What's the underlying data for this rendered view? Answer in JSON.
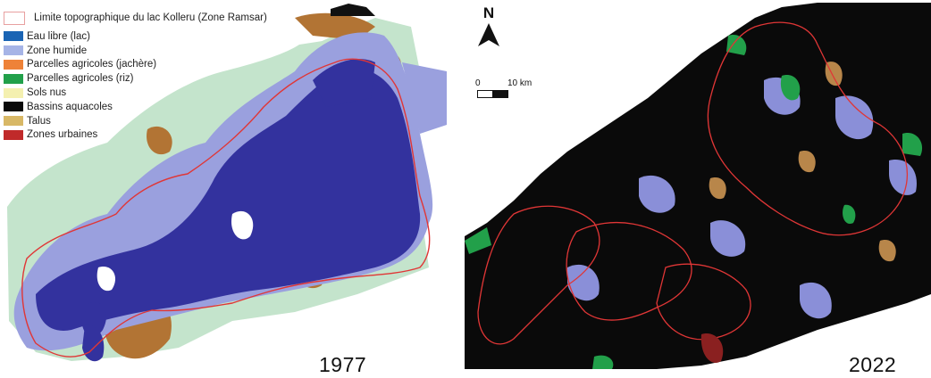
{
  "legend": {
    "boundary_label": "Limite topographique du lac Kolleru (Zone Ramsar)",
    "items": [
      {
        "label": "Eau libre (lac)",
        "color": "#1a64b4"
      },
      {
        "label": "Zone humide",
        "color": "#a6b4e6"
      },
      {
        "label": "Parcelles agricoles (jachère)",
        "color": "#ee8238"
      },
      {
        "label": "Parcelles agricoles (riz)",
        "color": "#22a04a"
      },
      {
        "label": "Sols nus",
        "color": "#f4f0b0"
      },
      {
        "label": "Bassins aquacoles",
        "color": "#0a0a0a"
      },
      {
        "label": "Talus",
        "color": "#d8b866"
      },
      {
        "label": "Zones urbaines",
        "color": "#c02a2a"
      }
    ]
  },
  "north_arrow": {
    "label": "N"
  },
  "scale": {
    "start": "0",
    "end": "10 km"
  },
  "maps": [
    {
      "year": "1977"
    },
    {
      "year": "2022"
    }
  ],
  "colors": {
    "lake_1977": "#33329e",
    "wetland_1977": "#9aa0de",
    "vegetation_1977": "#c4e4cc",
    "brown_1977": "#b27434",
    "boundary": "#e03636",
    "background_2022": "#0a0a0a"
  }
}
